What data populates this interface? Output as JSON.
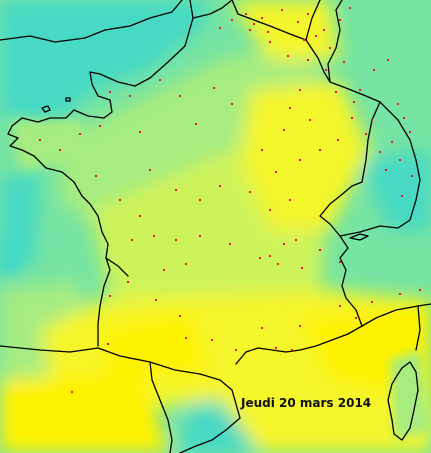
{
  "map": {
    "date_label": "Jeudi 20 mars 2014",
    "colors": {
      "sea_cyan": "#46d9c4",
      "teal_green": "#76e4a2",
      "light_green": "#a6ec80",
      "pale_lime": "#cdf35a",
      "yellow": "#f4f52c",
      "bright_yellow": "#fff200",
      "border": "#000000",
      "station_dot": "#e8173a"
    },
    "stations_shown": true
  }
}
